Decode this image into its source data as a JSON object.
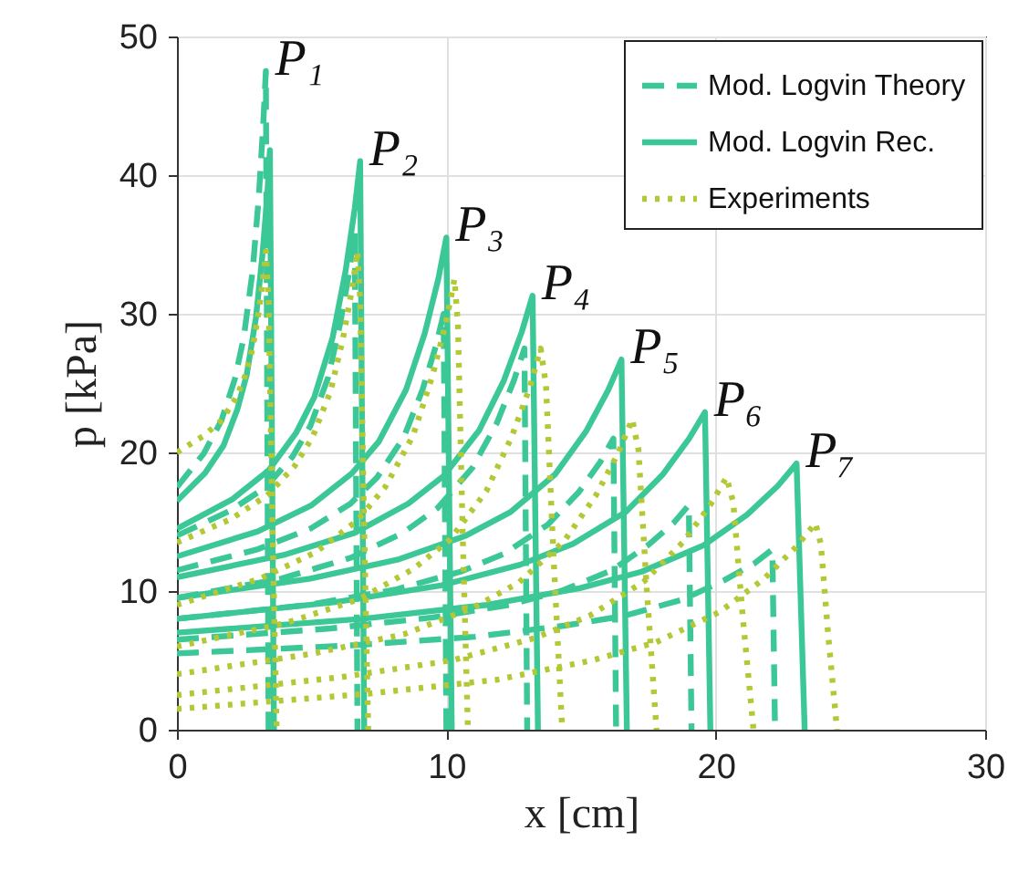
{
  "chart_data": {
    "type": "line",
    "xlabel": "x [cm]",
    "ylabel": "p [kPa]",
    "xlim": [
      0,
      30
    ],
    "xticks": [
      0,
      10,
      20,
      30
    ],
    "ylim": [
      0,
      50
    ],
    "yticks": [
      0,
      10,
      20,
      30,
      40,
      50
    ],
    "grid": true,
    "legend": "top right",
    "series": [
      {
        "name": "Mod. Logvin Theory",
        "color": "#3cc896",
        "line_style": "dashed",
        "x": [
          0,
          0.99,
          1.65,
          2.15,
          2.48,
          2.81,
          3.04,
          3.2,
          3.3,
          3.4
        ],
        "values": [
          17.5,
          19.9,
          22.3,
          25.3,
          28.3,
          33.1,
          38.5,
          43.6,
          47.5,
          0
        ]
      },
      {
        "color": "#3cc896",
        "line_style": "dashed",
        "x": [
          0,
          1.98,
          3.3,
          4.29,
          4.95,
          5.61,
          6.07,
          6.4,
          6.6,
          6.7
        ],
        "values": [
          14,
          15.8,
          17.5,
          19.7,
          21.9,
          25.4,
          29.4,
          33.1,
          36,
          0
        ]
      },
      {
        "color": "#3cc896",
        "line_style": "dashed",
        "x": [
          0,
          2.97,
          4.95,
          6.44,
          7.43,
          8.42,
          9.11,
          9.6,
          9.9,
          10.0
        ],
        "values": [
          11.5,
          13.0,
          14.5,
          16.3,
          18.2,
          21.1,
          24.5,
          27.6,
          30,
          0
        ]
      },
      {
        "color": "#3cc896",
        "line_style": "dashed",
        "x": [
          0,
          3.87,
          6.45,
          8.39,
          9.68,
          10.97,
          11.87,
          12.51,
          12.9,
          13.0
        ],
        "values": [
          9.5,
          10.9,
          12.4,
          14.2,
          16.0,
          18.9,
          22.1,
          25.2,
          27.5,
          0
        ]
      },
      {
        "color": "#3cc896",
        "line_style": "dashed",
        "x": [
          0,
          4.86,
          8.1,
          10.53,
          12.15,
          13.77,
          14.9,
          15.71,
          16.2,
          16.3
        ],
        "values": [
          8,
          9.0,
          10.1,
          11.4,
          12.7,
          14.8,
          17.1,
          19.3,
          21,
          0
        ]
      },
      {
        "color": "#3cc896",
        "line_style": "dashed",
        "x": [
          0,
          5.7,
          9.5,
          12.35,
          14.25,
          16.15,
          17.48,
          18.43,
          19,
          19.1
        ],
        "values": [
          6.5,
          7.3,
          8.1,
          9.0,
          10.0,
          11.5,
          13.3,
          14.9,
          16.2,
          0
        ]
      },
      {
        "color": "#3cc896",
        "line_style": "dashed",
        "x": [
          0,
          6.63,
          11.05,
          14.37,
          16.58,
          18.79,
          20.33,
          21.44,
          22.1,
          22.2
        ],
        "values": [
          5.5,
          6.1,
          6.7,
          7.5,
          8.2,
          9.4,
          10.8,
          12.0,
          13,
          0
        ]
      },
      {
        "name": "Mod. Logvin Rec.",
        "color": "#3cc896",
        "line_style": "solid",
        "x": [
          0,
          1.04,
          1.73,
          2.24,
          2.59,
          2.93,
          3.17,
          3.35,
          3.45,
          3.6
        ],
        "values": [
          16.5,
          18.5,
          20.5,
          23.1,
          25.6,
          29.7,
          34.2,
          38.5,
          41.8,
          0
        ]
      },
      {
        "color": "#3cc896",
        "line_style": "solid",
        "x": [
          0,
          2.04,
          3.4,
          4.42,
          5.1,
          5.78,
          6.26,
          6.6,
          6.8,
          6.95
        ],
        "values": [
          14.5,
          16.6,
          18.7,
          21.4,
          24.0,
          28.3,
          33.1,
          37.6,
          41.0,
          0
        ]
      },
      {
        "color": "#3cc896",
        "line_style": "solid",
        "x": [
          0,
          3,
          5,
          6.5,
          7.5,
          8.5,
          9.2,
          9.7,
          10,
          10.2
        ],
        "values": [
          12.5,
          14.3,
          16.2,
          18.5,
          20.8,
          24.5,
          28.6,
          32.5,
          35.5,
          0
        ]
      },
      {
        "color": "#3cc896",
        "line_style": "solid",
        "x": [
          0,
          3.96,
          6.6,
          8.58,
          9.9,
          11.22,
          12.14,
          12.8,
          13.2,
          13.4
        ],
        "values": [
          11,
          12.6,
          14.2,
          16.3,
          18.3,
          21.6,
          25.2,
          28.7,
          31.3,
          0
        ]
      },
      {
        "color": "#3cc896",
        "line_style": "solid",
        "x": [
          0,
          4.95,
          8.25,
          10.73,
          12.38,
          14.03,
          15.18,
          16.01,
          16.5,
          16.7
        ],
        "values": [
          9.5,
          10.9,
          12.3,
          14.0,
          15.7,
          18.4,
          21.5,
          24.5,
          26.7,
          0
        ]
      },
      {
        "color": "#3cc896",
        "line_style": "solid",
        "x": [
          0,
          5.88,
          9.8,
          12.74,
          14.7,
          16.66,
          18.03,
          19.01,
          19.6,
          19.8
        ],
        "values": [
          8,
          9.2,
          10.4,
          11.9,
          13.4,
          15.7,
          18.4,
          21.0,
          22.9,
          0
        ]
      },
      {
        "color": "#3cc896",
        "line_style": "solid",
        "x": [
          0,
          6.9,
          11.5,
          14.95,
          17.25,
          19.55,
          21.16,
          22.31,
          23,
          23.3
        ],
        "values": [
          7,
          8.0,
          9.0,
          10.2,
          11.4,
          13.3,
          15.5,
          17.6,
          19.2,
          0
        ]
      },
      {
        "name": "Experiments",
        "color": "#b4c836",
        "line_style": "dotted",
        "x": [
          0,
          0.99,
          1.65,
          2.15,
          2.48,
          2.81,
          3.04,
          3.2,
          3.3,
          3.4,
          3.54,
          3.7
        ],
        "values": [
          20,
          21.2,
          22.3,
          23.8,
          25.2,
          27.5,
          30.2,
          32.6,
          34.5,
          31,
          15.5,
          0
        ]
      },
      {
        "color": "#b4c836",
        "line_style": "dotted",
        "x": [
          0,
          2.01,
          3.35,
          4.36,
          5.03,
          5.7,
          6.16,
          6.5,
          6.7,
          6.8,
          6.94,
          7.1
        ],
        "values": [
          13.5,
          15.2,
          16.9,
          19.0,
          21.1,
          24.4,
          28.2,
          31.8,
          34.5,
          31,
          15.5,
          0
        ]
      },
      {
        "color": "#b4c836",
        "line_style": "dotted",
        "x": [
          0,
          3.09,
          5.15,
          6.7,
          7.73,
          8.76,
          9.48,
          9.99,
          10.3,
          10.43,
          10.6,
          10.8
        ],
        "values": [
          9,
          10.9,
          12.8,
          15.1,
          17.5,
          21.2,
          25.5,
          29.4,
          32.5,
          29.3,
          14.6,
          0
        ]
      },
      {
        "color": "#b4c836",
        "line_style": "dotted",
        "x": [
          0,
          4.05,
          6.75,
          8.78,
          10.13,
          11.48,
          12.42,
          13.1,
          13.5,
          13.7,
          13.98,
          14.3
        ],
        "values": [
          6,
          7.7,
          9.4,
          11.6,
          13.7,
          17.2,
          21.1,
          24.7,
          27.5,
          24.8,
          12.4,
          0
        ]
      },
      {
        "color": "#b4c836",
        "line_style": "dotted",
        "x": [
          0,
          5.07,
          8.45,
          10.99,
          12.68,
          14.37,
          15.55,
          16.39,
          16.9,
          17.13,
          17.44,
          17.8
        ],
        "values": [
          4,
          5.5,
          6.9,
          8.8,
          10.6,
          13.6,
          16.9,
          20.0,
          22.4,
          20.2,
          10.1,
          0
        ]
      },
      {
        "color": "#b4c836",
        "line_style": "dotted",
        "x": [
          0,
          6.12,
          10.2,
          13.26,
          15.3,
          17.34,
          18.77,
          19.79,
          20.4,
          20.65,
          21,
          21.4
        ],
        "values": [
          2.5,
          3.8,
          5.0,
          6.6,
          8.2,
          10.7,
          13.5,
          16.2,
          18.2,
          16.4,
          8.2,
          0
        ]
      },
      {
        "color": "#b4c836",
        "line_style": "dotted",
        "x": [
          0,
          7.11,
          11.85,
          15.41,
          17.78,
          20.15,
          21.8,
          22.99,
          23.7,
          23.9,
          24.18,
          24.5
        ],
        "values": [
          1.5,
          2.6,
          3.6,
          5.0,
          6.3,
          8.5,
          10.9,
          13.2,
          14.9,
          13.4,
          6.7,
          0
        ]
      }
    ],
    "annotations": [
      {
        "text": "P₁",
        "x": 3.3,
        "y": 47.5
      },
      {
        "text": "P₂",
        "x": 6.8,
        "y": 41.0
      },
      {
        "text": "P₃",
        "x": 10,
        "y": 35.5
      },
      {
        "text": "P₄",
        "x": 13.2,
        "y": 31.3
      },
      {
        "text": "P₅",
        "x": 16.5,
        "y": 26.7
      },
      {
        "text": "P₆",
        "x": 19.6,
        "y": 22.9
      },
      {
        "text": "P₇",
        "x": 23,
        "y": 19.2
      }
    ]
  }
}
